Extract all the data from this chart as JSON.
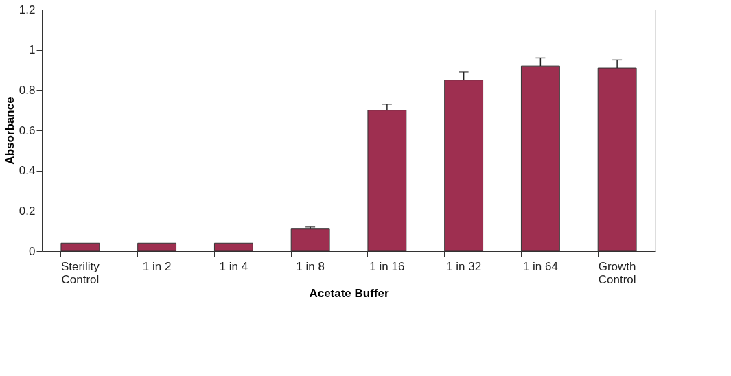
{
  "chart_data": {
    "type": "bar",
    "xlabel": "Acetate Buffer",
    "ylabel": "Absorbance",
    "categories": [
      "Sterility\nControl",
      "1 in 2",
      "1 in 4",
      "1 in 8",
      "1 in 16",
      "1 in 32",
      "1 in 64",
      "Growth\nControl"
    ],
    "values": [
      0.04,
      0.04,
      0.04,
      0.11,
      0.7,
      0.85,
      0.92,
      0.91
    ],
    "errors": [
      null,
      null,
      null,
      [
        0.11,
        0.12
      ],
      [
        0.7,
        0.73
      ],
      [
        0.85,
        0.89
      ],
      [
        0.92,
        0.96
      ],
      [
        0.91,
        0.95
      ]
    ],
    "color": "#9e2f50",
    "ylim": [
      0,
      1.2
    ],
    "yticks": [
      0,
      0.2,
      0.4,
      0.6,
      0.8,
      1,
      1.2
    ],
    "grid": false
  }
}
